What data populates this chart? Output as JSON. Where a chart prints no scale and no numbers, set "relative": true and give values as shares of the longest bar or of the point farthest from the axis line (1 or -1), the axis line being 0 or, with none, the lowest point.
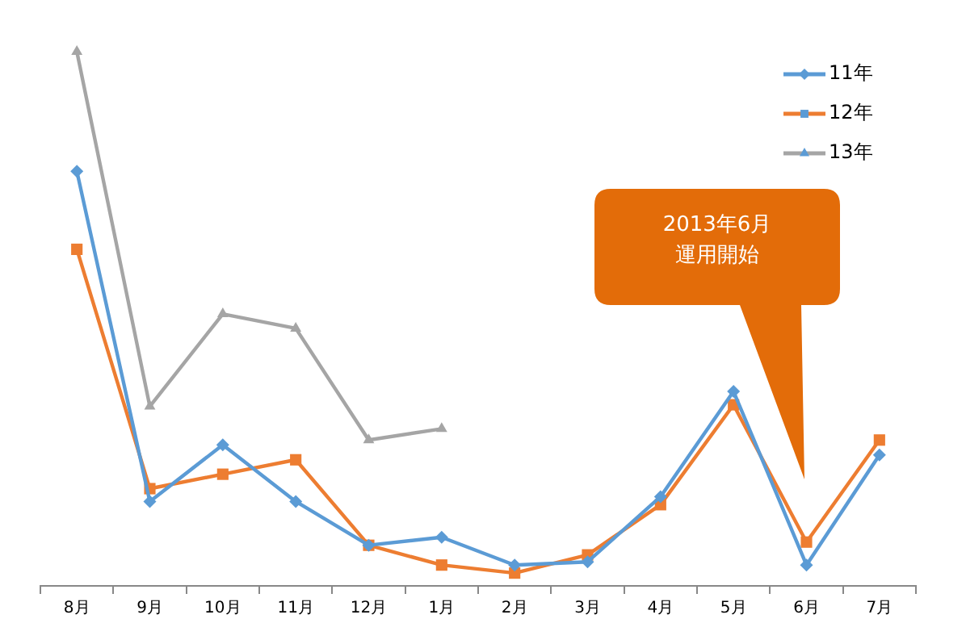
{
  "chart_data": {
    "type": "line",
    "relative": true,
    "categories": [
      "8月",
      "9月",
      "10月",
      "11月",
      "12月",
      "1月",
      "2月",
      "3月",
      "4月",
      "5月",
      "6月",
      "7月"
    ],
    "series": [
      {
        "name": "11年",
        "color": "#5b9bd5",
        "marker": "diamond",
        "values": [
          0.776,
          0.158,
          0.264,
          0.158,
          0.076,
          0.091,
          0.039,
          0.045,
          0.167,
          0.364,
          0.039,
          0.245
        ]
      },
      {
        "name": "12年",
        "color": "#ed7d31",
        "marker": "square",
        "values": [
          0.63,
          0.182,
          0.209,
          0.236,
          0.076,
          0.039,
          0.024,
          0.058,
          0.152,
          0.339,
          0.082,
          0.273
        ]
      },
      {
        "name": "13年",
        "color": "#a5a5a5",
        "marker": "triangle",
        "values": [
          1,
          0.336,
          0.509,
          0.482,
          0.273,
          0.294,
          null,
          null,
          null,
          null,
          null,
          null
        ]
      }
    ],
    "legend": "top right",
    "grid": false,
    "annotations": [
      "2013年6月運用開始"
    ]
  }
}
